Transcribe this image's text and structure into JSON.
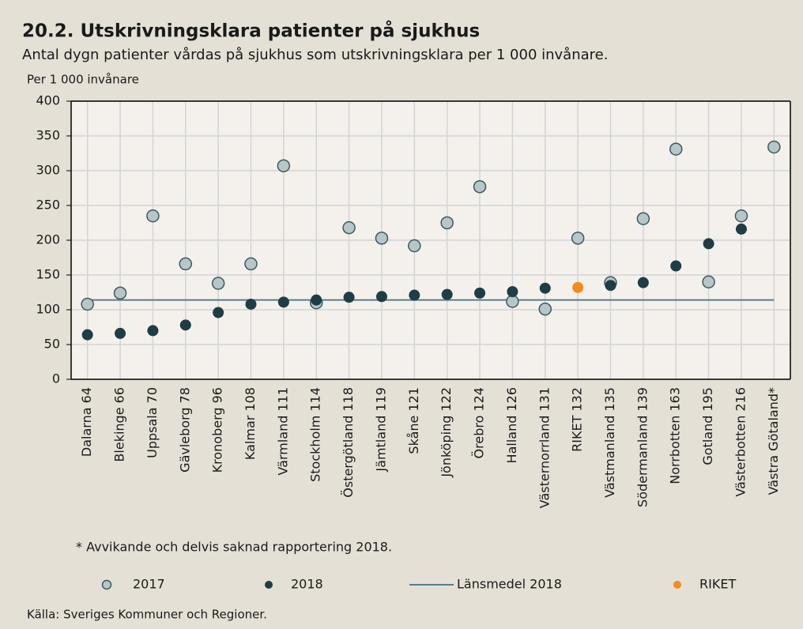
{
  "chart_data": {
    "type": "scatter",
    "title": "20.2. Utskrivningsklara patienter på sjukhus",
    "subtitle": "Antal dygn patienter vårdas på sjukhus som utskrivningsklara per 1 000 invånare.",
    "y_label": "Per 1 000 invånare",
    "categories": [
      "Dalarna 64",
      "Blekinge 66",
      "Uppsala 70",
      "Gävleborg 78",
      "Kronoberg 96",
      "Kalmar 108",
      "Värmland 111",
      "Stockholm 114",
      "Östergötland 118",
      "Jämtland 119",
      "Skåne 121",
      "Jönköping 122",
      "Örebro 124",
      "Halland 126",
      "Västernorrland 131",
      "RIKET 132",
      "Västmanland 135",
      "Södermanland 139",
      "Norrbotten 163",
      "Gotland 195",
      "Västerbotten 216",
      "Västra Götaland*"
    ],
    "series": [
      {
        "name": "2017",
        "color": "#b8c6c8",
        "values": [
          108,
          124,
          235,
          166,
          138,
          166,
          307,
          110,
          218,
          203,
          192,
          225,
          277,
          112,
          101,
          203,
          139,
          231,
          331,
          140,
          235,
          334
        ]
      },
      {
        "name": "2018",
        "color": "#1f3d45",
        "values": [
          64,
          66,
          70,
          78,
          96,
          108,
          111,
          114,
          118,
          119,
          121,
          122,
          124,
          126,
          131,
          null,
          135,
          139,
          163,
          195,
          216,
          null
        ]
      },
      {
        "name": "RIKET",
        "color": "#f28c1e",
        "values": [
          null,
          null,
          null,
          null,
          null,
          null,
          null,
          null,
          null,
          null,
          null,
          null,
          null,
          null,
          null,
          132,
          null,
          null,
          null,
          null,
          null,
          null
        ]
      }
    ],
    "reference_line": {
      "name": "Länsmedel 2018",
      "value": 114,
      "color": "#5a7d88"
    },
    "ylim": [
      0,
      400
    ],
    "yticks": [
      0,
      50,
      100,
      150,
      200,
      250,
      300,
      350,
      400
    ],
    "grid": true,
    "footnote": "* Avvikande och delvis saknad rapportering 2018.",
    "source": "Källa: Sveriges Kommuner och Regioner."
  }
}
